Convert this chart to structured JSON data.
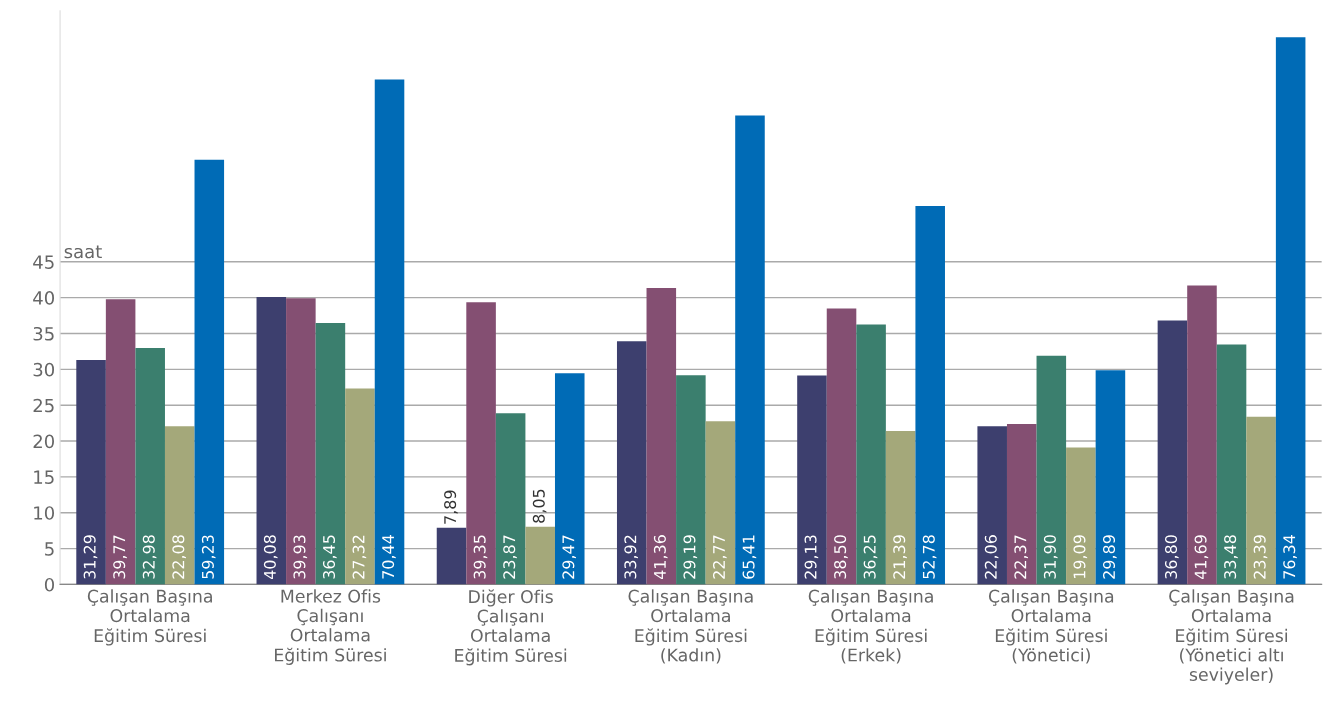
{
  "chart_data": {
    "type": "bar",
    "categories": [
      "Çalışan Başına\nOrtalama\nEğitim Süresi",
      "Merkez Ofis\nÇalışanı\nOrtalama\nEğitim Süresi",
      "Diğer Ofis\nÇalışanı\nOrtalama\nEğitim Süresi",
      "Çalışan Başına\nOrtalama\nEğitim Süresi\n(Kadın)",
      "Çalışan Başına\nOrtalama\nEğitim Süresi\n(Erkek)",
      "Çalışan Başına\nOrtalama\nEğitim Süresi\n(Yönetici)",
      "Çalışan Başına\nOrtalama\nEğitim Süresi\n(Yönetici altı\nseviyeler)"
    ],
    "series": [
      {
        "color": "#3d3f6e",
        "values": [
          31.29,
          40.08,
          7.89,
          33.92,
          29.13,
          22.06,
          36.8
        ],
        "value_labels": [
          "31,29",
          "40,08",
          "7,89",
          "33,92",
          "29,13",
          "22,06",
          "36,80"
        ]
      },
      {
        "color": "#844f72",
        "values": [
          39.77,
          39.93,
          39.35,
          41.36,
          38.5,
          22.37,
          41.69
        ],
        "value_labels": [
          "39,77",
          "39,93",
          "39,35",
          "41,36",
          "38,50",
          "22,37",
          "41,69"
        ]
      },
      {
        "color": "#3b7f6e",
        "values": [
          32.98,
          36.45,
          23.87,
          29.19,
          36.25,
          31.9,
          33.48
        ],
        "value_labels": [
          "32,98",
          "36,45",
          "23,87",
          "29,19",
          "36,25",
          "31,90",
          "33,48"
        ]
      },
      {
        "color": "#a4a87a",
        "values": [
          22.08,
          27.32,
          8.05,
          22.77,
          21.39,
          19.09,
          23.39
        ],
        "value_labels": [
          "22,08",
          "27,32",
          "8,05",
          "22,77",
          "21,39",
          "19,09",
          "23,39"
        ]
      },
      {
        "color": "#006bb6",
        "values": [
          59.23,
          70.44,
          29.47,
          65.41,
          52.78,
          29.89,
          76.34
        ],
        "value_labels": [
          "59,23",
          "70,44",
          "29,47",
          "65,41",
          "52,78",
          "29,89",
          "76,34"
        ]
      }
    ],
    "ylim": [
      0,
      80
    ],
    "yticks": [
      0,
      5,
      10,
      15,
      20,
      25,
      30,
      35,
      40,
      45
    ],
    "grid": "y",
    "annotations": [
      "saat"
    ]
  }
}
